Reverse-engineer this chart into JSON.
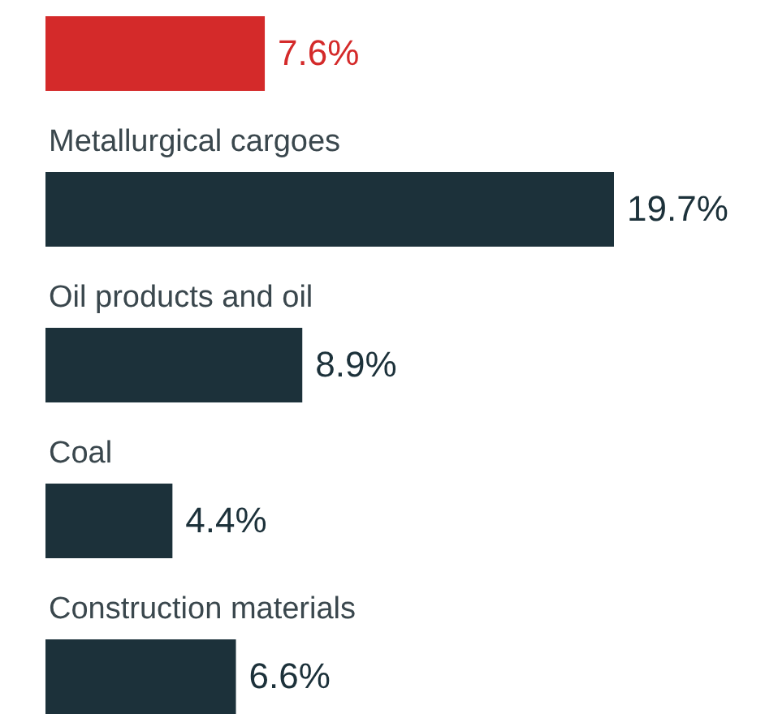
{
  "chart_data": {
    "type": "bar",
    "orientation": "horizontal",
    "categories": [
      null,
      "Metallurgical cargoes",
      "Oil products and oil",
      "Coal",
      "Construction materials"
    ],
    "values": [
      7.6,
      19.7,
      8.9,
      4.4,
      6.6
    ],
    "value_labels": [
      "7.6%",
      "19.7%",
      "8.9%",
      "4.4%",
      "6.6%"
    ],
    "colors": [
      "#d42a2a",
      "#1c313a",
      "#1c313a",
      "#1c313a",
      "#1c313a"
    ],
    "tick_labels": false
  }
}
